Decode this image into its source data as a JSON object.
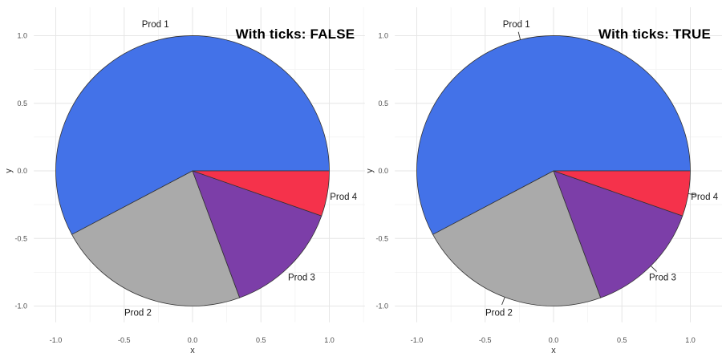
{
  "figure_title": "",
  "style": {
    "background": "#FFFFFF",
    "grid_major_color": "#E6E6E6",
    "grid_minor_color": "#F2F2F2",
    "slice_edge_color": "#333333",
    "leader_tick_color": "#333333",
    "axis_text_color": "#4D4D4D",
    "axis_title_color": "#333333",
    "label_color": "#1A1A1A",
    "title_color": "#000000"
  },
  "chart_data": [
    {
      "type": "pie",
      "title": "With ticks: FALSE",
      "with_label_ticks": false,
      "labels": [
        "Prod 1",
        "Prod 2",
        "Prod 3",
        "Prod 4"
      ],
      "fractions": [
        0.578,
        0.228,
        0.14,
        0.054
      ],
      "percent_estimates": [
        57.8,
        22.8,
        14.0,
        5.4
      ],
      "colors": [
        "#4372E8",
        "#AAAAAA",
        "#7C3EA8",
        "#F5324B"
      ],
      "start_angle_deg": 0,
      "direction": "counterclockwise",
      "xlabel": "x",
      "ylabel": "y",
      "tick_values": [
        -1.0,
        -0.5,
        0.0,
        0.5,
        1.0
      ],
      "x_tick_labels": [
        "-1.0",
        "-0.5",
        "0.0",
        "0.5",
        "1.0"
      ],
      "y_tick_labels": [
        "-1.0",
        "-0.5",
        "0.0",
        "0.5",
        "1.0"
      ],
      "xlim": [
        -1.16,
        1.26
      ],
      "ylim": [
        -1.12,
        1.21
      ],
      "grid": "major+minor",
      "legend": "none",
      "label_radius": 1.12
    },
    {
      "type": "pie",
      "title": "With ticks: TRUE",
      "with_label_ticks": true,
      "labels": [
        "Prod 1",
        "Prod 2",
        "Prod 3",
        "Prod 4"
      ],
      "fractions": [
        0.578,
        0.228,
        0.14,
        0.054
      ],
      "percent_estimates": [
        57.8,
        22.8,
        14.0,
        5.4
      ],
      "colors": [
        "#4372E8",
        "#AAAAAA",
        "#7C3EA8",
        "#F5324B"
      ],
      "start_angle_deg": 0,
      "direction": "counterclockwise",
      "xlabel": "x",
      "ylabel": "y",
      "tick_values": [
        -1.0,
        -0.5,
        0.0,
        0.5,
        1.0
      ],
      "x_tick_labels": [
        "-1.0",
        "-0.5",
        "0.0",
        "0.5",
        "1.0"
      ],
      "y_tick_labels": [
        "-1.0",
        "-0.5",
        "0.0",
        "0.5",
        "1.0"
      ],
      "xlim": [
        -1.16,
        1.26
      ],
      "ylim": [
        -1.12,
        1.21
      ],
      "grid": "major+minor",
      "legend": "none",
      "label_radius": 1.12
    }
  ]
}
